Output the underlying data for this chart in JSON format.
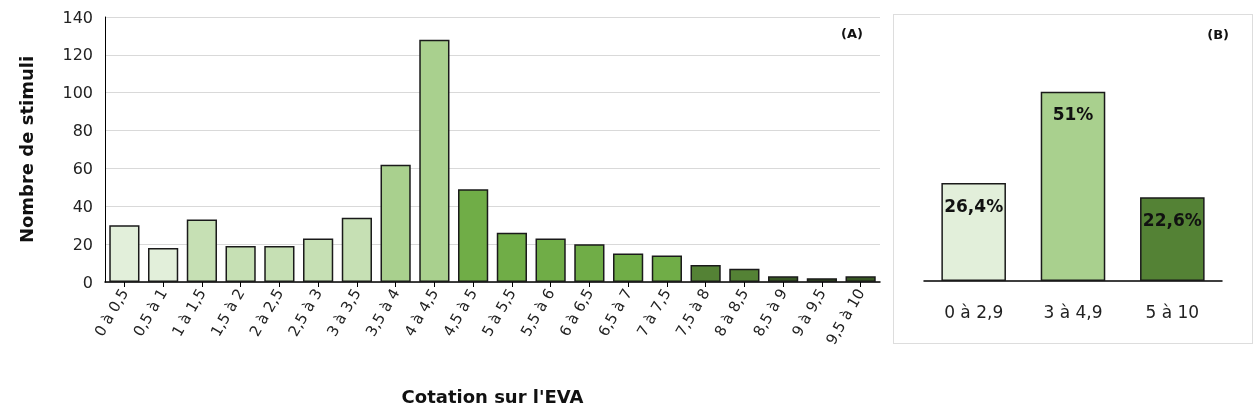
{
  "chart_data": [
    {
      "type": "bar",
      "title": "(A)",
      "xlabel": "Cotation sur l'EVA",
      "ylabel": "Nombre de stimuli",
      "categories": [
        "0 à 0,5",
        "0,5 à 1",
        "1 à 1,5",
        "1,5 à 2",
        "2 à 2,5",
        "2,5 à 3",
        "3 à 3,5",
        "3,5 à 4",
        "4 à 4,5",
        "4,5 à 5",
        "5 à 5,5",
        "5,5 à 6",
        "6 à 6,5",
        "6,5 à 7",
        "7 à 7,5",
        "7,5 à 8",
        "8 à 8,5",
        "8,5 à 9",
        "9 à 9,5",
        "9,5 à 10"
      ],
      "values": [
        30,
        18,
        33,
        19,
        19,
        23,
        34,
        62,
        128,
        49,
        26,
        23,
        20,
        15,
        14,
        9,
        7,
        3,
        2,
        3
      ],
      "colors": [
        "#e2efda",
        "#e2efda",
        "#c6e0b4",
        "#c6e0b4",
        "#c6e0b4",
        "#c6e0b4",
        "#c6e0b4",
        "#a9d08e",
        "#a9d08e",
        "#70ad47",
        "#70ad47",
        "#70ad47",
        "#70ad47",
        "#70ad47",
        "#70ad47",
        "#548235",
        "#548235",
        "#375623",
        "#375623",
        "#375623"
      ],
      "ylim": [
        0,
        140
      ],
      "yticks": [
        0,
        20,
        40,
        60,
        80,
        100,
        120,
        140
      ],
      "grid": "y"
    },
    {
      "type": "bar",
      "title": "(B)",
      "categories": [
        "0 à 2,9",
        "3 à 4,9",
        "5 à 10"
      ],
      "values": [
        26.4,
        51,
        22.6
      ],
      "colors": [
        "#e2efda",
        "#a9d08e",
        "#548235"
      ],
      "value_labels": [
        "26,4%",
        "51%",
        "22,6%"
      ]
    }
  ]
}
